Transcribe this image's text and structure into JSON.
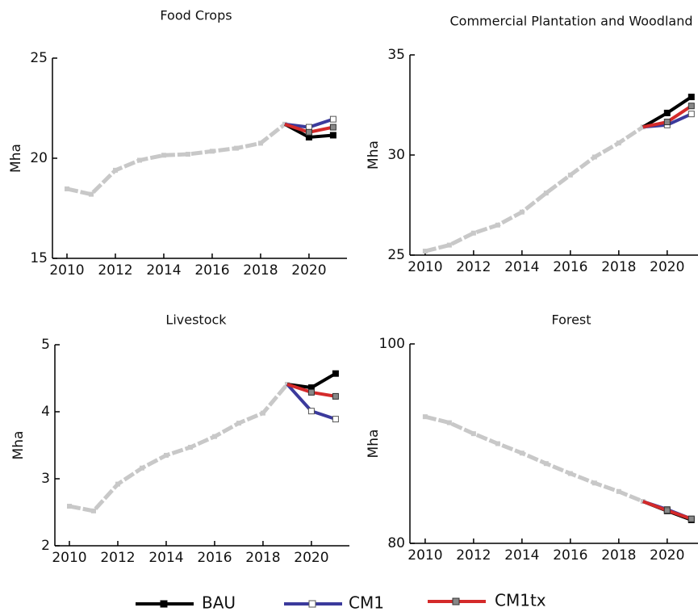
{
  "chart_data": [
    {
      "type": "line",
      "title": "Food Crops",
      "y_label": "Mha",
      "x": [
        2010,
        2011,
        2012,
        2013,
        2014,
        2015,
        2016,
        2017,
        2018,
        2019,
        2020,
        2021
      ],
      "xlim": [
        2009.4,
        2021.57
      ],
      "xticks": [
        2010,
        2012,
        2014,
        2016,
        2018,
        2020
      ],
      "ylim": [
        15,
        25
      ],
      "yticks": [
        15,
        20,
        25
      ],
      "series": [
        {
          "color": "#c8c8c8",
          "values": [
            18.47,
            18.2,
            19.4,
            19.9,
            20.15,
            20.2,
            20.35,
            20.5,
            20.75,
            21.7,
            null,
            null
          ]
        },
        {
          "name": "BAU",
          "color": "#000000",
          "values": [
            null,
            null,
            null,
            null,
            null,
            null,
            null,
            null,
            null,
            21.7,
            21.05,
            21.15
          ]
        },
        {
          "name": "CM1",
          "color": "#3b3a9c",
          "values": [
            null,
            null,
            null,
            null,
            null,
            null,
            null,
            null,
            null,
            21.7,
            21.55,
            21.95
          ]
        },
        {
          "name": "CM1tx",
          "color": "#d42a2a",
          "values": [
            null,
            null,
            null,
            null,
            null,
            null,
            null,
            null,
            null,
            21.7,
            21.3,
            21.55
          ]
        }
      ]
    },
    {
      "type": "line",
      "title": "Commercial Plantation and Woodland",
      "y_label": "Mha",
      "x": [
        2010,
        2011,
        2012,
        2013,
        2014,
        2015,
        2016,
        2017,
        2018,
        2019,
        2020,
        2021
      ],
      "xlim": [
        2009.37,
        2021.54
      ],
      "xticks": [
        2010,
        2012,
        2014,
        2016,
        2018,
        2020
      ],
      "ylim": [
        25,
        35
      ],
      "yticks": [
        25,
        30,
        35
      ],
      "series": [
        {
          "color": "#c8c8c8",
          "values": [
            25.2,
            25.5,
            26.1,
            26.5,
            27.15,
            28.1,
            29.0,
            29.9,
            30.6,
            31.4,
            null,
            null
          ]
        },
        {
          "name": "BAU",
          "color": "#000000",
          "values": [
            null,
            null,
            null,
            null,
            null,
            null,
            null,
            null,
            null,
            31.4,
            32.1,
            32.9
          ]
        },
        {
          "name": "CM1",
          "color": "#3b3a9c",
          "values": [
            null,
            null,
            null,
            null,
            null,
            null,
            null,
            null,
            null,
            31.4,
            31.5,
            32.05
          ]
        },
        {
          "name": "CM1tx",
          "color": "#d42a2a",
          "values": [
            null,
            null,
            null,
            null,
            null,
            null,
            null,
            null,
            null,
            31.4,
            31.65,
            32.45
          ]
        }
      ]
    },
    {
      "type": "line",
      "title": "Livestock",
      "y_label": "Mha",
      "x": [
        2010,
        2011,
        2012,
        2013,
        2014,
        2015,
        2016,
        2017,
        2018,
        2019,
        2020,
        2021
      ],
      "xlim": [
        2009.4,
        2021.57
      ],
      "xticks": [
        2010,
        2012,
        2014,
        2016,
        2018,
        2020
      ],
      "ylim": [
        2,
        5
      ],
      "yticks": [
        2,
        3,
        4,
        5
      ],
      "series": [
        {
          "color": "#c8c8c8",
          "values": [
            2.59,
            2.52,
            2.92,
            3.16,
            3.35,
            3.47,
            3.63,
            3.83,
            3.98,
            4.41,
            null,
            null
          ]
        },
        {
          "name": "BAU",
          "color": "#000000",
          "values": [
            null,
            null,
            null,
            null,
            null,
            null,
            null,
            null,
            null,
            4.41,
            4.36,
            4.57
          ]
        },
        {
          "name": "CM1",
          "color": "#3b3a9c",
          "values": [
            null,
            null,
            null,
            null,
            null,
            null,
            null,
            null,
            null,
            4.41,
            4.01,
            3.89
          ]
        },
        {
          "name": "CM1tx",
          "color": "#d42a2a",
          "values": [
            null,
            null,
            null,
            null,
            null,
            null,
            null,
            null,
            null,
            4.41,
            4.29,
            4.23
          ]
        }
      ]
    },
    {
      "type": "line",
      "title": "Forest",
      "y_label": "Mha",
      "x": [
        2010,
        2011,
        2012,
        2013,
        2014,
        2015,
        2016,
        2017,
        2018,
        2019,
        2020,
        2021
      ],
      "xlim": [
        2009.37,
        2021.54
      ],
      "xticks": [
        2010,
        2012,
        2014,
        2016,
        2018,
        2020
      ],
      "ylim": [
        80,
        100
      ],
      "yticks": [
        80,
        100
      ],
      "series": [
        {
          "color": "#c8c8c8",
          "values": [
            92.7,
            92.1,
            91.0,
            90.0,
            89.05,
            88.0,
            87.0,
            86.05,
            85.2,
            84.2,
            null,
            null
          ]
        },
        {
          "name": "BAU",
          "color": "#000000",
          "values": [
            null,
            null,
            null,
            null,
            null,
            null,
            null,
            null,
            null,
            84.2,
            83.25,
            82.35
          ]
        },
        {
          "name": "CM1",
          "color": "#3b3a9c",
          "values": [
            null,
            null,
            null,
            null,
            null,
            null,
            null,
            null,
            null,
            84.2,
            83.4,
            82.45
          ]
        },
        {
          "name": "CM1tx",
          "color": "#d42a2a",
          "values": [
            null,
            null,
            null,
            null,
            null,
            null,
            null,
            null,
            null,
            84.2,
            83.3,
            82.45
          ]
        }
      ]
    }
  ]
}
